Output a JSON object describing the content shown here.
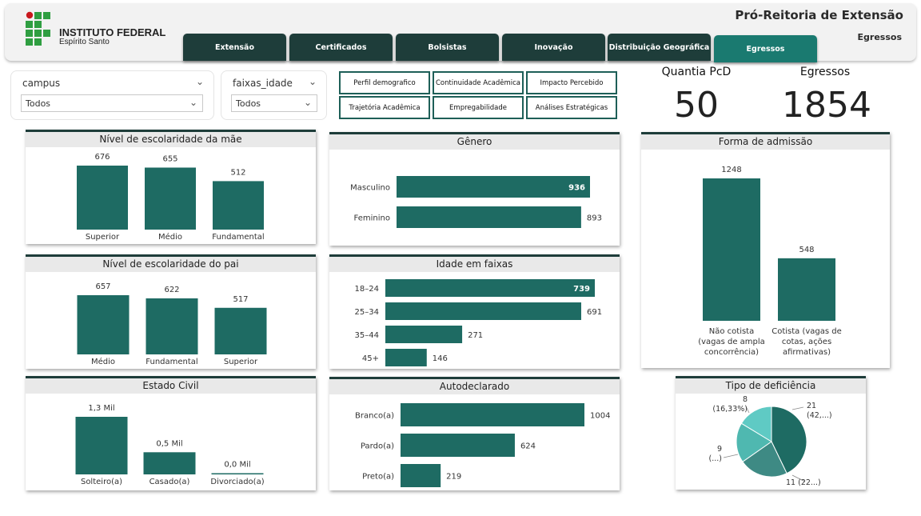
{
  "brand": {
    "name": "INSTITUTO FEDERAL",
    "campus": "Espírito Santo",
    "colors": {
      "green": "#2f9e41",
      "red": "#c8191e"
    }
  },
  "header": {
    "title": "Pró-Reitoria de Extensão",
    "subtitle": "Egressos"
  },
  "tabs": [
    {
      "label": "Extensão",
      "active": false
    },
    {
      "label": "Certificados",
      "active": false
    },
    {
      "label": "Bolsistas",
      "active": false
    },
    {
      "label": "Inovação",
      "active": false
    },
    {
      "label": "Distribuição Geográfica",
      "active": false
    },
    {
      "label": "Egressos",
      "active": true
    }
  ],
  "filters": {
    "campus": {
      "label": "campus",
      "value": "Todos"
    },
    "faixas_idade": {
      "label": "faixas_idade",
      "value": "Todos"
    }
  },
  "nav_buttons": [
    "Perfil demografico",
    "Continuidade Acadêmica",
    "Impacto Percebido",
    "Trajetória Acadêmica",
    "Empregabilidade",
    "Análises Estratégicas"
  ],
  "kpis": {
    "pcd": {
      "label": "Quantia PcD",
      "value": "50"
    },
    "egressos": {
      "label": "Egressos",
      "value": "1854"
    }
  },
  "colors": {
    "bar": "#1e6b63",
    "header_dark": "#1e3d3a",
    "tab_active": "#1a7a70"
  },
  "chart_data": [
    {
      "id": "escolaridade_mae",
      "type": "bar",
      "title": "Nível de escolaridade da mãe",
      "categories": [
        "Superior",
        "Médio",
        "Fundamental"
      ],
      "values": [
        676,
        655,
        512
      ],
      "labels": [
        "676",
        "655",
        "512"
      ]
    },
    {
      "id": "escolaridade_pai",
      "type": "bar",
      "title": "Nível de escolaridade do pai",
      "categories": [
        "Médio",
        "Fundamental",
        "Superior"
      ],
      "values": [
        657,
        622,
        517
      ],
      "labels": [
        "657",
        "622",
        "517"
      ]
    },
    {
      "id": "estado_civil",
      "type": "bar",
      "title": "Estado Civil",
      "categories": [
        "Solteiro(a)",
        "Casado(a)",
        "Divorciado(a)"
      ],
      "values": [
        1300,
        500,
        20
      ],
      "labels": [
        "1,3 Mil",
        "0,5 Mil",
        "0,0 Mil"
      ]
    },
    {
      "id": "genero",
      "type": "hbar",
      "title": "Gênero",
      "categories": [
        "Masculino",
        "Feminino"
      ],
      "values": [
        936,
        893
      ],
      "labels": [
        "936",
        "893"
      ]
    },
    {
      "id": "idade_faixas",
      "type": "hbar",
      "title": "Idade em faixas",
      "categories": [
        "18–24",
        "25–34",
        "35–44",
        "45+"
      ],
      "values": [
        739,
        691,
        271,
        146
      ],
      "labels": [
        "739",
        "691",
        "271",
        "146"
      ]
    },
    {
      "id": "autodeclarado",
      "type": "hbar",
      "title": "Autodeclarado",
      "categories": [
        "Branco(a)",
        "Pardo(a)",
        "Preto(a)"
      ],
      "values": [
        1004,
        624,
        219
      ],
      "labels": [
        "1004",
        "624",
        "219"
      ]
    },
    {
      "id": "forma_admissao",
      "type": "bar",
      "title": "Forma de admissão",
      "categories": [
        [
          "Não cotista",
          "(vagas de ampla",
          "concorrência)"
        ],
        [
          "Cotista (vagas de",
          "cotas, ações",
          "afirmativas)"
        ]
      ],
      "values": [
        1248,
        548
      ],
      "labels": [
        "1248",
        "548"
      ]
    },
    {
      "id": "tipo_deficiencia",
      "type": "pie",
      "title": "Tipo de deficiência",
      "values": [
        21,
        11,
        9,
        8
      ],
      "labels": [
        [
          "21",
          "(42,...)"
        ],
        [
          "11 (22...)"
        ],
        [
          "9",
          "(...)"
        ],
        [
          "8",
          "(16,33%)"
        ]
      ],
      "colors": [
        "#1e6b63",
        "#3e8a84",
        "#4fb8b0",
        "#5fcac4"
      ]
    }
  ]
}
